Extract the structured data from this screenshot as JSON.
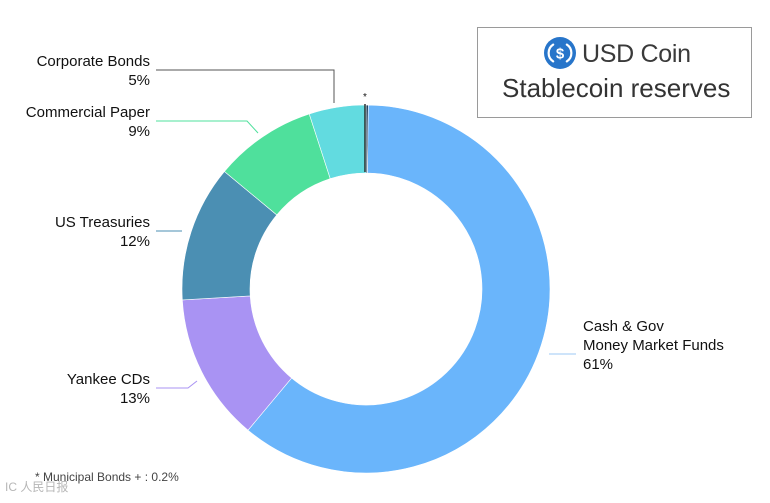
{
  "brand": {
    "name": "USD Coin",
    "subtitle": "Stablecoin reserves",
    "logo_icon": "usdc-logo-icon",
    "logo_color": "#2775CA"
  },
  "footnote": "* Municipal Bonds + : 0.2%",
  "watermark": "IC 人民日报",
  "chart_data": {
    "type": "pie",
    "variant": "donut",
    "title": "Stablecoin reserves",
    "unit": "%",
    "start_angle_deg": 0,
    "direction": "clockwise",
    "slices": [
      {
        "name": "*",
        "value": 0.2,
        "label_lines": [
          "*"
        ],
        "color": "#1a3d5c"
      },
      {
        "name": "Cash & Gov Money Market Funds",
        "value": 61,
        "label_lines": [
          "Cash & Gov",
          "Money Market Funds",
          "61%"
        ],
        "color": "#6ab5fb"
      },
      {
        "name": "Yankee CDs",
        "value": 13,
        "label_lines": [
          "Yankee CDs",
          "13%"
        ],
        "color": "#a993f3"
      },
      {
        "name": "US Treasuries",
        "value": 12,
        "label_lines": [
          "US Treasuries",
          "12%"
        ],
        "color": "#4b8fb3"
      },
      {
        "name": "Commercial Paper",
        "value": 9,
        "label_lines": [
          "Commercial Paper",
          "9%"
        ],
        "color": "#4fe09c"
      },
      {
        "name": "Corporate Bonds",
        "value": 5,
        "label_lines": [
          "Corporate Bonds",
          "5%"
        ],
        "color": "#62dbe0"
      }
    ]
  }
}
